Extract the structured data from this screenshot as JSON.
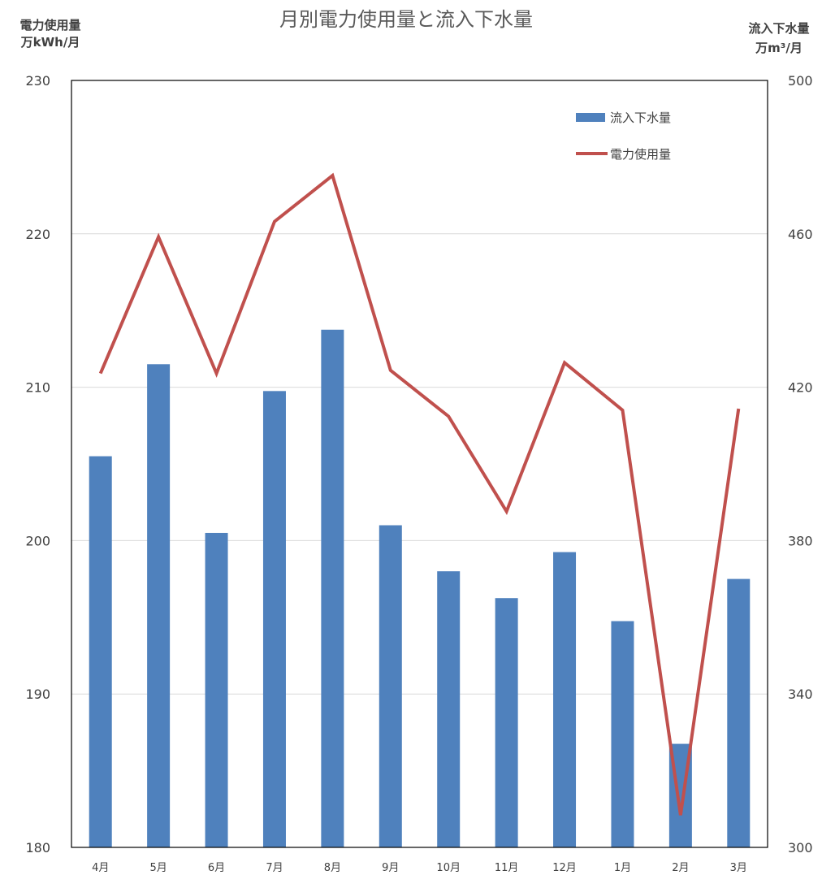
{
  "chart_data": {
    "type": "bar+line",
    "title": "月別電力使用量と流入下水量",
    "left_axis": {
      "title_line1": "電力使用量",
      "title_line2": "万kWh/月",
      "ylim": [
        180,
        230
      ],
      "ticks": [
        180,
        190,
        200,
        210,
        220,
        230
      ]
    },
    "right_axis": {
      "title_line1": "流入下水量",
      "title_line2": "万m³/月",
      "ylim": [
        300,
        500
      ],
      "ticks": [
        300,
        340,
        380,
        420,
        460,
        500
      ]
    },
    "categories": [
      "4月",
      "5月",
      "6月",
      "7月",
      "8月",
      "9月",
      "10月",
      "11月",
      "12月",
      "1月",
      "2月",
      "3月"
    ],
    "series": [
      {
        "name": "流入下水量",
        "type": "bar",
        "axis": "right",
        "color": "#4F81BD",
        "values": [
          402,
          426,
          382,
          419,
          435,
          384,
          372,
          365,
          377,
          359,
          327,
          370
        ]
      },
      {
        "name": "電力使用量",
        "type": "line",
        "axis": "left",
        "color": "#C0504D",
        "values": [
          210.9,
          219.8,
          210.9,
          220.8,
          223.8,
          211.1,
          208.1,
          201.9,
          211.6,
          208.5,
          182.1,
          208.6
        ]
      }
    ],
    "grid": true,
    "legend_position": "top-right"
  }
}
